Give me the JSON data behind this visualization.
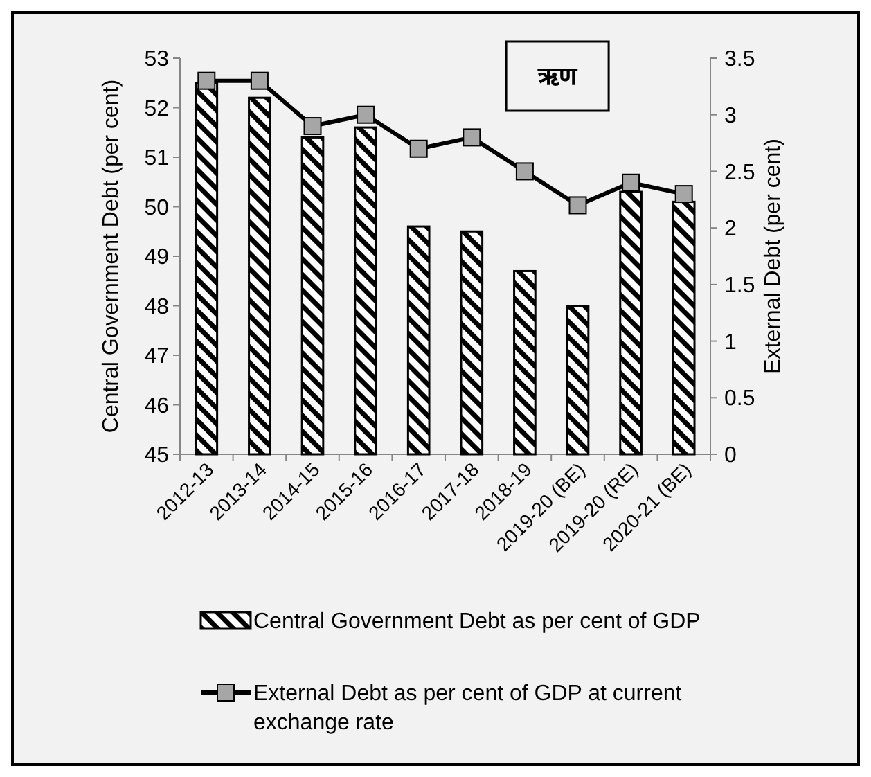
{
  "chart_data": {
    "type": "bar",
    "title": "ऋण",
    "categories": [
      "2012-13",
      "2013-14",
      "2014-15",
      "2015-16",
      "2016-17",
      "2017-18",
      "2018-19",
      "2019-20 (BE)",
      "2019-20 (RE)",
      "2020-21 (BE)"
    ],
    "series": [
      {
        "name": "Central Government Debt as per cent of GDP",
        "color": "#000000",
        "values": [
          52.5,
          52.2,
          51.4,
          51.6,
          49.6,
          49.5,
          48.7,
          48.0,
          50.3,
          50.1
        ]
      },
      {
        "name": "External Debt as per cent of GDP at current exchange rate",
        "type": "line",
        "axis": "y2",
        "color": "#000000",
        "marker": "square",
        "values": [
          3.3,
          3.3,
          2.9,
          3.0,
          2.7,
          2.8,
          2.5,
          2.2,
          2.4,
          2.3
        ]
      }
    ],
    "ylabel": "Central Government Debt (per cent)",
    "y2label": "External Debt (per cent)",
    "ylim": [
      45,
      53
    ],
    "yticks": [
      45,
      46,
      47,
      48,
      49,
      50,
      51,
      52,
      53
    ],
    "y2lim": [
      0,
      3.5
    ],
    "y2ticks": [
      0,
      0.5,
      1,
      1.5,
      2,
      2.5,
      3,
      3.5
    ],
    "grid": false,
    "legend": "bottom"
  }
}
